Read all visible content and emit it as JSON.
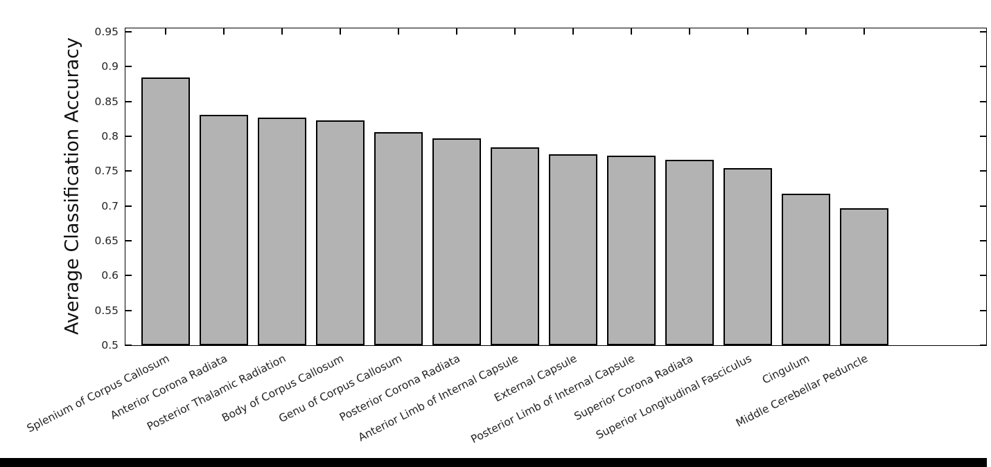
{
  "chart_data": {
    "type": "bar",
    "title": "",
    "xlabel": "",
    "ylabel": "Average Classification Accuracy",
    "ylim": [
      0.5,
      0.955
    ],
    "yticks": [
      0.5,
      0.55,
      0.6,
      0.65,
      0.7,
      0.75,
      0.8,
      0.85,
      0.9,
      0.95
    ],
    "ytick_labels": [
      "0.5",
      "0.55",
      "0.6",
      "0.65",
      "0.7",
      "0.75",
      "0.8",
      "0.85",
      "0.9",
      "0.95"
    ],
    "categories": [
      "Splenium of Corpus Callosum",
      "Anterior Corona Radiata",
      "Posterior Thalamic Radiation",
      "Body of Corpus Callosum",
      "Genu of Corpus Callosum",
      "Posterior Corona Radiata",
      "Anterior Limb of Internal Capsule",
      "External Capsule",
      "Posterior Limb of Internal Capsule",
      "Superior Corona Radiata",
      "Superior Longitudinal Fasciculus",
      "Cingulum",
      "Middle Cerebellar Peduncle"
    ],
    "values": [
      0.884,
      0.831,
      0.827,
      0.823,
      0.806,
      0.797,
      0.784,
      0.774,
      0.772,
      0.766,
      0.754,
      0.718,
      0.697
    ],
    "bar_color": "#b3b3b3",
    "bar_edge_color": "#000000",
    "grid": false,
    "legend": null,
    "background_color": "#ffffff"
  }
}
